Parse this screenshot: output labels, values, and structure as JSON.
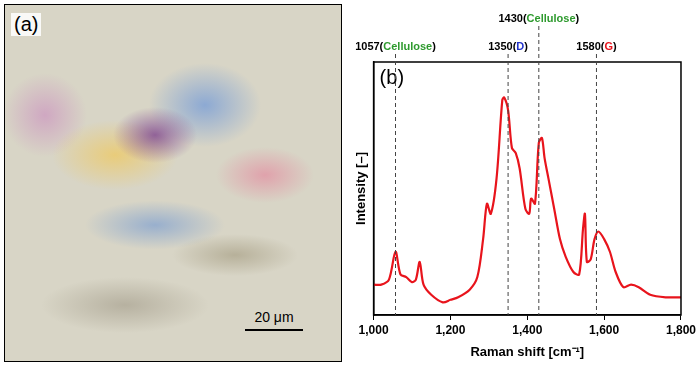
{
  "image_panel": {
    "label": "(a)",
    "scale_bar": "20 μm"
  },
  "chart_data": {
    "type": "line",
    "panel_label": "(b)",
    "x_label": "Raman shift [cm⁻¹]",
    "y_label": "Intensity [–]",
    "color": "#e8141c",
    "x": [
      1000,
      1020,
      1040,
      1057,
      1070,
      1085,
      1100,
      1110,
      1120,
      1130,
      1150,
      1180,
      1200,
      1220,
      1250,
      1270,
      1285,
      1295,
      1305,
      1320,
      1335,
      1340,
      1350,
      1360,
      1370,
      1380,
      1395,
      1405,
      1410,
      1420,
      1430,
      1438,
      1445,
      1455,
      1470,
      1485,
      1500,
      1520,
      1535,
      1545,
      1550,
      1555,
      1565,
      1575,
      1585,
      1600,
      1615,
      1630,
      1650,
      1670,
      1690,
      1720,
      1760,
      1800
    ],
    "values": [
      12,
      12,
      14,
      25,
      16,
      15,
      13,
      14,
      21,
      12,
      8,
      5,
      6,
      7,
      10,
      15,
      30,
      44,
      40,
      54,
      85,
      86,
      81,
      66,
      64,
      58,
      42,
      40,
      46,
      44,
      68,
      70,
      62,
      54,
      42,
      30,
      23,
      17,
      16,
      34,
      40,
      21,
      22,
      30,
      33,
      30,
      25,
      17,
      11,
      12,
      11,
      8,
      7,
      7
    ],
    "xlim": [
      1000,
      1800
    ],
    "xticks": [
      1000,
      1200,
      1400,
      1600,
      1800
    ],
    "ylim": [
      0,
      100
    ],
    "tick_labels": "x",
    "grid": false,
    "annotations": [
      {
        "x": 1057,
        "label": "1057(Cellulose)",
        "peak": "Cellulose",
        "color": "#2e9a2e"
      },
      {
        "x": 1350,
        "label": "1350(D)",
        "peak": "D",
        "color": "#2233cc"
      },
      {
        "x": 1430,
        "label": "1430(Cellulose)",
        "peak": "Cellulose",
        "color": "#2e9a2e"
      },
      {
        "x": 1580,
        "label": "1580(G)",
        "peak": "G",
        "color": "#e8141c"
      }
    ]
  }
}
